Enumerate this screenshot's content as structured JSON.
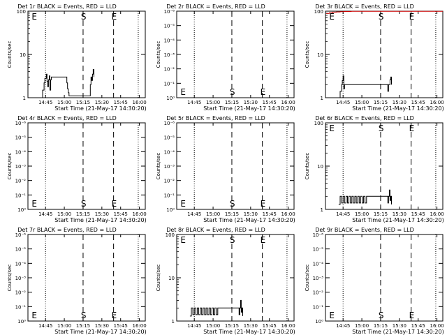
{
  "chart_data": [
    {
      "type": "line",
      "title": "Det 1r BLACK = Events, RED = LLD",
      "xlabel": "Start Time (21-May-17 14:30:20)",
      "ylabel": "Counts/sec",
      "scale": "log",
      "yticks": [
        "1",
        "10",
        "100"
      ],
      "ylim": [
        1,
        100
      ],
      "xticks": [
        "14:45",
        "15:00",
        "15:15",
        "15:30",
        "15:45",
        "16:00"
      ],
      "markers": [
        "E",
        "S",
        "E"
      ],
      "series": [
        {
          "name": "BLACK = Events",
          "color": "#000000",
          "x": [
            18,
            20,
            22,
            23,
            25,
            26,
            27,
            28,
            29,
            30,
            31,
            32,
            34,
            36,
            38,
            40,
            42,
            44,
            46,
            48,
            50,
            52,
            53,
            54,
            55,
            56,
            85,
            86,
            87,
            88,
            89,
            90
          ],
          "y": [
            1,
            1.5,
            2.2,
            2.8,
            3.5,
            2.4,
            1.8,
            2.6,
            3.2,
            1.5,
            2.6,
            3.0,
            3.0,
            3.0,
            3.0,
            3.0,
            3.0,
            3.0,
            3.0,
            3.0,
            3.0,
            3.0,
            2.2,
            1.6,
            1.3,
            1.1,
            2.0,
            3.0,
            2.5,
            3.5,
            4.5,
            3.0
          ]
        }
      ]
    },
    {
      "type": "line",
      "title": "Det 2r BLACK = Events, RED = LLD",
      "xlabel": "Start Time (21-May-17 14:30:20)",
      "ylabel": "Counts/sec",
      "scale": "log",
      "yticks": [
        "10⁰",
        "10⁻¹",
        "10⁻²",
        "10⁻³",
        "10⁻⁴",
        "10⁻⁵",
        "10⁻⁶"
      ],
      "xticks": [
        "14:45",
        "15:00",
        "15:15",
        "15:30",
        "15:45",
        "16:00"
      ],
      "markers": [
        "E",
        "S",
        "E"
      ],
      "series": []
    },
    {
      "type": "line",
      "title": "Det 3r BLACK = Events, RED = LLD",
      "xlabel": "Start Time (21-May-17 14:30:20)",
      "ylabel": "Counts/sec",
      "scale": "log",
      "yticks": [
        "1",
        "10",
        "100"
      ],
      "ylim": [
        1,
        100
      ],
      "xticks": [
        "14:45",
        "15:00",
        "15:15",
        "15:30",
        "15:45",
        "16:00"
      ],
      "markers": [
        "E",
        "S",
        "E"
      ],
      "series": [
        {
          "name": "BLACK = Events",
          "color": "#000000",
          "x": [
            18,
            20,
            22,
            23,
            24,
            25,
            26,
            28,
            30,
            32,
            34,
            36,
            38,
            40,
            42,
            44,
            46,
            48,
            50,
            52,
            54,
            56,
            85,
            86,
            87,
            88,
            89,
            90
          ],
          "y": [
            1,
            1.4,
            2.0,
            2.5,
            3.2,
            1.6,
            2.0,
            2.0,
            2.0,
            2.0,
            2.0,
            2.0,
            2.0,
            2.0,
            2.0,
            2.0,
            2.0,
            2.0,
            2.0,
            2.0,
            2.0,
            2.0,
            1.4,
            2.0,
            2.0,
            2.6,
            3.0,
            2.0
          ]
        },
        {
          "name": "RED = LLD",
          "color": "#cc0000",
          "x": [
            1,
            5,
            10,
            15,
            20,
            25,
            30,
            35,
            40,
            45,
            50,
            55,
            60,
            65,
            70,
            75,
            80,
            85,
            90,
            95,
            100,
            105,
            110,
            115,
            120,
            125,
            130,
            135,
            140,
            145,
            150,
            155,
            160
          ],
          "y": [
            88,
            92,
            95,
            96,
            97,
            98,
            98,
            99,
            99,
            99,
            99,
            99,
            99,
            99,
            99,
            99,
            99,
            99,
            99,
            99,
            99,
            99,
            99,
            99,
            99,
            99,
            99,
            99,
            99,
            99,
            99,
            99,
            99
          ]
        }
      ]
    },
    {
      "type": "line",
      "title": "Det 4r BLACK = Events, RED = LLD",
      "xlabel": "Start Time (21-May-17 14:30:20)",
      "ylabel": "Counts/sec",
      "scale": "log",
      "yticks": [
        "10⁰",
        "10⁻¹",
        "10⁻²",
        "10⁻³",
        "10⁻⁴",
        "10⁻⁵",
        "10⁻⁶"
      ],
      "xticks": [
        "14:45",
        "15:00",
        "15:15",
        "15:30",
        "15:45",
        "16:00"
      ],
      "markers": [
        "E",
        "S",
        "E"
      ],
      "series": []
    },
    {
      "type": "line",
      "title": "Det 5r BLACK = Events, RED = LLD",
      "xlabel": "Start Time (21-May-17 14:30:20)",
      "ylabel": "Counts/sec",
      "scale": "log",
      "yticks": [
        "10⁰",
        "10⁻¹",
        "10⁻²",
        "10⁻³",
        "10⁻⁴",
        "10⁻⁵",
        "10⁻⁶"
      ],
      "xticks": [
        "14:45",
        "15:00",
        "15:15",
        "15:30",
        "15:45",
        "16:00"
      ],
      "markers": [
        "E",
        "S",
        "E"
      ],
      "series": []
    },
    {
      "type": "line",
      "title": "Det 6r BLACK = Events, RED = LLD",
      "xlabel": "Start Time (21-May-17 14:30:20)",
      "ylabel": "Counts/sec",
      "scale": "log",
      "yticks": [
        "1",
        "10",
        "100"
      ],
      "ylim": [
        1,
        100
      ],
      "xticks": [
        "14:45",
        "15:00",
        "15:15",
        "15:30",
        "15:45",
        "16:00"
      ],
      "markers": [
        "E",
        "S",
        "E"
      ],
      "series": [
        {
          "name": "BLACK = Events",
          "color": "#000000",
          "x": [
            18,
            20,
            22,
            24,
            26,
            28,
            30,
            32,
            34,
            36,
            38,
            40,
            42,
            44,
            46,
            48,
            50,
            52,
            54,
            56,
            85,
            86,
            87,
            88,
            89,
            90
          ],
          "y": [
            1.3,
            2.0,
            1.4,
            2.0,
            1.4,
            2.0,
            1.4,
            2.0,
            1.4,
            2.0,
            1.4,
            2.0,
            1.4,
            2.0,
            1.4,
            2.0,
            1.4,
            2.0,
            1.4,
            2.0,
            1.4,
            2.0,
            2.8,
            1.6,
            2.0,
            1.3
          ]
        }
      ]
    },
    {
      "type": "line",
      "title": "Det 7r BLACK = Events, RED = LLD",
      "xlabel": "Start Time (21-May-17 14:30:20)",
      "ylabel": "Counts/sec",
      "scale": "log",
      "yticks": [
        "10⁰",
        "10⁻¹",
        "10⁻²",
        "10⁻³",
        "10⁻⁴",
        "10⁻⁵",
        "10⁻⁶"
      ],
      "xticks": [
        "14:45",
        "15:00",
        "15:15",
        "15:30",
        "15:45",
        "16:00"
      ],
      "markers": [
        "E",
        "S",
        "E"
      ],
      "series": []
    },
    {
      "type": "line",
      "title": "Det 8r BLACK = Events, RED = LLD",
      "xlabel": "Start Time (21-May-17 14:30:20)",
      "ylabel": "Counts/sec",
      "scale": "log",
      "yticks": [
        "1",
        "10",
        "100"
      ],
      "ylim": [
        1,
        100
      ],
      "xticks": [
        "14:45",
        "15:00",
        "15:15",
        "15:30",
        "15:45",
        "16:00"
      ],
      "markers": [
        "E",
        "S",
        "E"
      ],
      "series": [
        {
          "name": "BLACK = Events",
          "color": "#000000",
          "x": [
            18,
            20,
            22,
            24,
            26,
            28,
            30,
            32,
            34,
            36,
            38,
            40,
            42,
            44,
            46,
            48,
            50,
            52,
            54,
            56,
            85,
            86,
            87,
            88,
            89,
            90
          ],
          "y": [
            1.3,
            2.0,
            1.4,
            2.0,
            1.4,
            2.0,
            1.4,
            2.0,
            1.4,
            2.0,
            1.4,
            2.0,
            1.4,
            2.0,
            1.4,
            2.0,
            1.4,
            2.0,
            1.4,
            2.0,
            1.4,
            2.0,
            3.0,
            1.6,
            2.0,
            1.3
          ]
        }
      ]
    },
    {
      "type": "line",
      "title": "Det 9r BLACK = Events, RED = LLD",
      "xlabel": "Start Time (21-May-17 14:30:20)",
      "ylabel": "Counts/sec",
      "scale": "log",
      "yticks": [
        "10⁰",
        "10⁻¹",
        "10⁻²",
        "10⁻³",
        "10⁻⁴",
        "10⁻⁵",
        "10⁻⁶"
      ],
      "xticks": [
        "14:45",
        "15:00",
        "15:15",
        "15:30",
        "15:45",
        "16:00"
      ],
      "markers": [
        "E",
        "S",
        "E"
      ],
      "series": []
    }
  ]
}
